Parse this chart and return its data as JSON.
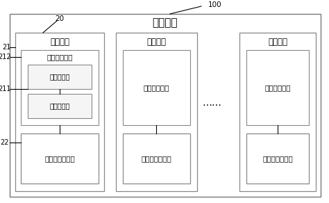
{
  "bg_color": "#ffffff",
  "border_color": "#888888",
  "box_color": "#ffffff",
  "title_outer": "阵列基板",
  "label_100": "100",
  "label_20": "20",
  "label_21": "21",
  "label_212": "212",
  "label_211": "211",
  "label_22": "22",
  "pixel_unit_label": "像素单元",
  "pixel_drive_circuit": "像素驱动电路",
  "switch_transistor": "开关晶体管",
  "drive_transistor": "驱动晶体管",
  "micro_led": "微米发光二极管",
  "dots": "……",
  "figsize": [
    4.74,
    2.92
  ],
  "dpi": 100
}
